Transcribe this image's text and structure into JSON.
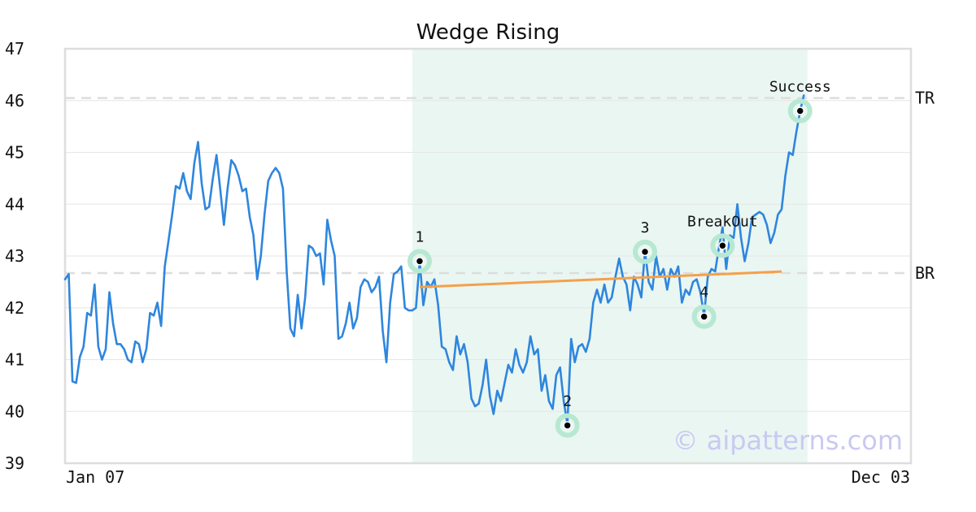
{
  "chart_data": {
    "type": "line",
    "title": "Wedge Rising",
    "xlabel": "",
    "ylabel": "",
    "ylim": [
      39,
      47
    ],
    "yticks": [
      39,
      40,
      41,
      42,
      43,
      44,
      45,
      46,
      47
    ],
    "xtick_labels": [
      "Jan 07",
      "Dec 03"
    ],
    "grid": "horizontal",
    "n_points": 230,
    "series": [
      {
        "name": "",
        "color": "#2e86de",
        "anchors": [
          [
            0,
            42.55
          ],
          [
            1,
            42.65
          ],
          [
            2,
            40.58
          ],
          [
            3,
            40.55
          ],
          [
            4,
            41.05
          ],
          [
            5,
            41.25
          ],
          [
            6,
            41.9
          ],
          [
            7,
            41.85
          ],
          [
            8,
            42.45
          ],
          [
            9,
            41.25
          ],
          [
            10,
            41.0
          ],
          [
            11,
            41.2
          ],
          [
            12,
            42.3
          ],
          [
            13,
            41.7
          ],
          [
            14,
            41.3
          ],
          [
            15,
            41.3
          ],
          [
            16,
            41.2
          ],
          [
            17,
            41.0
          ],
          [
            18,
            40.95
          ],
          [
            19,
            41.35
          ],
          [
            20,
            41.3
          ],
          [
            21,
            40.95
          ],
          [
            22,
            41.2
          ],
          [
            23,
            41.9
          ],
          [
            24,
            41.85
          ],
          [
            25,
            42.1
          ],
          [
            26,
            41.65
          ],
          [
            27,
            42.8
          ],
          [
            28,
            43.3
          ],
          [
            29,
            43.8
          ],
          [
            30,
            44.35
          ],
          [
            31,
            44.3
          ],
          [
            32,
            44.6
          ],
          [
            33,
            44.25
          ],
          [
            34,
            44.1
          ],
          [
            35,
            44.8
          ],
          [
            36,
            45.2
          ],
          [
            37,
            44.4
          ],
          [
            38,
            43.9
          ],
          [
            39,
            43.95
          ],
          [
            40,
            44.5
          ],
          [
            41,
            44.95
          ],
          [
            42,
            44.3
          ],
          [
            43,
            43.6
          ],
          [
            44,
            44.3
          ],
          [
            45,
            44.85
          ],
          [
            46,
            44.75
          ],
          [
            47,
            44.55
          ],
          [
            48,
            44.25
          ],
          [
            49,
            44.3
          ],
          [
            50,
            43.75
          ],
          [
            51,
            43.4
          ],
          [
            52,
            42.55
          ],
          [
            53,
            43.0
          ],
          [
            54,
            43.8
          ],
          [
            55,
            44.45
          ],
          [
            56,
            44.6
          ],
          [
            57,
            44.7
          ],
          [
            58,
            44.6
          ],
          [
            59,
            44.3
          ],
          [
            60,
            42.7
          ],
          [
            61,
            41.6
          ],
          [
            62,
            41.45
          ],
          [
            63,
            42.25
          ],
          [
            64,
            41.6
          ],
          [
            65,
            42.2
          ],
          [
            66,
            43.2
          ],
          [
            67,
            43.15
          ],
          [
            68,
            43.0
          ],
          [
            69,
            43.05
          ],
          [
            70,
            42.45
          ],
          [
            71,
            43.7
          ],
          [
            72,
            43.3
          ],
          [
            73,
            43.0
          ],
          [
            74,
            41.4
          ],
          [
            75,
            41.45
          ],
          [
            76,
            41.7
          ],
          [
            77,
            42.1
          ],
          [
            78,
            41.6
          ],
          [
            79,
            41.8
          ],
          [
            80,
            42.4
          ],
          [
            81,
            42.55
          ],
          [
            82,
            42.5
          ],
          [
            83,
            42.3
          ],
          [
            84,
            42.4
          ],
          [
            85,
            42.6
          ],
          [
            86,
            41.55
          ],
          [
            87,
            40.95
          ],
          [
            88,
            42.1
          ],
          [
            89,
            42.65
          ],
          [
            90,
            42.7
          ],
          [
            91,
            42.8
          ],
          [
            92,
            42.0
          ],
          [
            93,
            41.95
          ],
          [
            94,
            41.95
          ],
          [
            95,
            42.0
          ],
          [
            96,
            42.9
          ],
          [
            97,
            42.05
          ],
          [
            98,
            42.5
          ],
          [
            99,
            42.4
          ],
          [
            100,
            42.55
          ],
          [
            101,
            42.05
          ],
          [
            102,
            41.25
          ],
          [
            103,
            41.2
          ],
          [
            104,
            40.95
          ],
          [
            105,
            40.8
          ],
          [
            106,
            41.45
          ],
          [
            107,
            41.1
          ],
          [
            108,
            41.3
          ],
          [
            109,
            40.95
          ],
          [
            110,
            40.25
          ],
          [
            111,
            40.1
          ],
          [
            112,
            40.15
          ],
          [
            113,
            40.5
          ],
          [
            114,
            41.0
          ],
          [
            115,
            40.3
          ],
          [
            116,
            39.95
          ],
          [
            117,
            40.4
          ],
          [
            118,
            40.2
          ],
          [
            119,
            40.55
          ],
          [
            120,
            40.9
          ],
          [
            121,
            40.75
          ],
          [
            122,
            41.2
          ],
          [
            123,
            40.9
          ],
          [
            124,
            40.75
          ],
          [
            125,
            40.95
          ],
          [
            126,
            41.45
          ],
          [
            127,
            41.1
          ],
          [
            128,
            41.2
          ],
          [
            129,
            40.4
          ],
          [
            130,
            40.7
          ],
          [
            131,
            40.2
          ],
          [
            132,
            40.05
          ],
          [
            133,
            40.7
          ],
          [
            134,
            40.85
          ],
          [
            135,
            40.2
          ],
          [
            136,
            39.75
          ],
          [
            137,
            41.4
          ],
          [
            138,
            40.95
          ],
          [
            139,
            41.25
          ],
          [
            140,
            41.3
          ],
          [
            141,
            41.15
          ],
          [
            142,
            41.4
          ],
          [
            143,
            42.1
          ],
          [
            144,
            42.35
          ],
          [
            145,
            42.1
          ],
          [
            146,
            42.45
          ],
          [
            147,
            42.1
          ],
          [
            148,
            42.2
          ],
          [
            149,
            42.6
          ],
          [
            150,
            42.95
          ],
          [
            151,
            42.6
          ],
          [
            152,
            42.45
          ],
          [
            153,
            41.95
          ],
          [
            154,
            42.6
          ],
          [
            155,
            42.45
          ],
          [
            156,
            42.2
          ],
          [
            157,
            43.1
          ],
          [
            158,
            42.5
          ],
          [
            159,
            42.35
          ],
          [
            160,
            43.0
          ],
          [
            161,
            42.6
          ],
          [
            162,
            42.75
          ],
          [
            163,
            42.35
          ],
          [
            164,
            42.75
          ],
          [
            165,
            42.6
          ],
          [
            166,
            42.8
          ],
          [
            167,
            42.1
          ],
          [
            168,
            42.35
          ],
          [
            169,
            42.25
          ],
          [
            170,
            42.5
          ],
          [
            171,
            42.55
          ],
          [
            172,
            42.3
          ],
          [
            173,
            41.85
          ],
          [
            174,
            42.6
          ],
          [
            175,
            42.75
          ],
          [
            176,
            42.7
          ],
          [
            177,
            43.15
          ],
          [
            178,
            43.55
          ],
          [
            179,
            42.75
          ],
          [
            180,
            43.4
          ],
          [
            181,
            43.35
          ],
          [
            182,
            44.0
          ],
          [
            183,
            43.35
          ],
          [
            184,
            42.9
          ],
          [
            185,
            43.25
          ],
          [
            186,
            43.75
          ],
          [
            187,
            43.8
          ],
          [
            188,
            43.85
          ],
          [
            189,
            43.8
          ],
          [
            190,
            43.6
          ],
          [
            191,
            43.25
          ],
          [
            192,
            43.45
          ],
          [
            193,
            43.8
          ],
          [
            194,
            43.9
          ],
          [
            195,
            44.55
          ],
          [
            196,
            45.0
          ],
          [
            197,
            44.95
          ],
          [
            198,
            45.4
          ],
          [
            199,
            45.8
          ],
          [
            200,
            46.1
          ]
        ]
      }
    ],
    "shaded_region": {
      "x_start": 94,
      "x_end": 201,
      "color": "#eaf6f2"
    },
    "trend_line": {
      "color": "#f5a04a",
      "from": [
        96,
        42.4
      ],
      "to": [
        194,
        42.7
      ]
    },
    "reference_lines": [
      {
        "label": "TR",
        "y": 46.05
      },
      {
        "label": "BR",
        "y": 42.67
      }
    ],
    "points": [
      {
        "label": "1",
        "x": 96,
        "y": 42.9,
        "label_pos": "above"
      },
      {
        "label": "2",
        "x": 136,
        "y": 39.73,
        "label_pos": "above"
      },
      {
        "label": "3",
        "x": 157,
        "y": 43.08,
        "label_pos": "above"
      },
      {
        "label": "4",
        "x": 173,
        "y": 41.83,
        "label_pos": "above"
      },
      {
        "label": "BreakOut",
        "x": 178,
        "y": 43.2,
        "label_pos": "above"
      },
      {
        "label": "Success",
        "x": 199,
        "y": 45.8,
        "label_pos": "above"
      }
    ],
    "watermark": "© aipatterns.com",
    "colors": {
      "line": "#2e86de",
      "trend": "#f5a04a",
      "marker_halo": "#b7e8d2",
      "marker_dot": "#000000",
      "ref_line": "#dddddd",
      "grid": "#e6e6e6",
      "frame": "#dddddd"
    }
  }
}
